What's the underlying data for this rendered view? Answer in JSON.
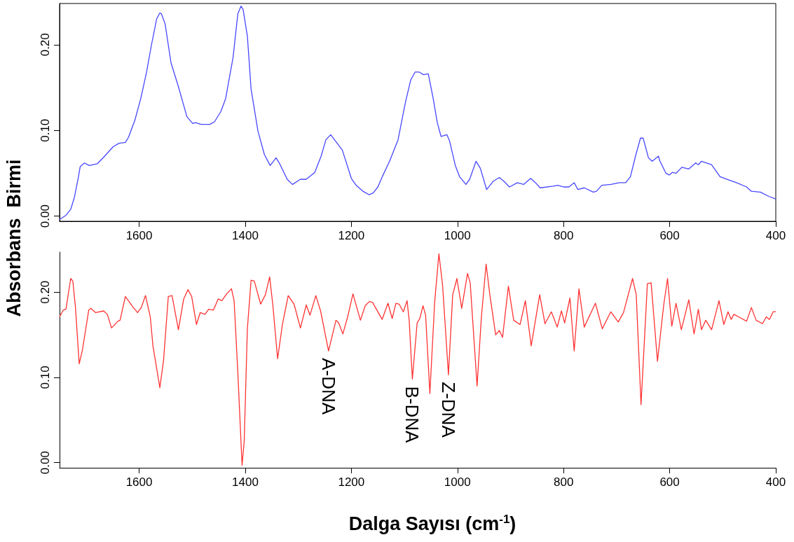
{
  "chart_data": [
    {
      "type": "line",
      "ylabel": "Absorbans  Birmi",
      "color": "#4747ff",
      "marker": "none",
      "xlim": [
        1750,
        400
      ],
      "xticks": [
        1600,
        1400,
        1200,
        1000,
        800,
        600,
        400
      ],
      "ylim": [
        -0.006,
        0.248
      ],
      "yticks": [
        {
          "value": 0,
          "label": "0.00"
        },
        {
          "value": 0.1,
          "label": "0.10"
        },
        {
          "value": 0.2,
          "label": "0.20"
        }
      ],
      "x": [
        1750,
        1738,
        1729,
        1722,
        1715,
        1711,
        1703,
        1694,
        1679,
        1665,
        1649,
        1638,
        1626,
        1620,
        1608,
        1597,
        1586,
        1577,
        1567,
        1561,
        1558,
        1551,
        1540,
        1526,
        1510,
        1499,
        1494,
        1483,
        1467,
        1458,
        1446,
        1437,
        1423,
        1414,
        1408,
        1404,
        1396,
        1389,
        1376,
        1364,
        1353,
        1342,
        1335,
        1321,
        1311,
        1296,
        1285,
        1269,
        1257,
        1248,
        1239,
        1228,
        1217,
        1200,
        1191,
        1178,
        1167,
        1159,
        1150,
        1141,
        1128,
        1112,
        1098,
        1088,
        1080,
        1072,
        1064,
        1055,
        1046,
        1038,
        1031,
        1020,
        1015,
        1004,
        996,
        984,
        977,
        965,
        957,
        945,
        932,
        921,
        913,
        902,
        887,
        875,
        862,
        853,
        844,
        820,
        811,
        799,
        790,
        780,
        773,
        761,
        744,
        738,
        728,
        711,
        695,
        683,
        674,
        664,
        655,
        650,
        640,
        633,
        621,
        619,
        607,
        601,
        595,
        588,
        577,
        564,
        551,
        546,
        540,
        521,
        505,
        488,
        474,
        455,
        446,
        429,
        413,
        400
      ],
      "values": [
        -0.004,
        0.001,
        0.008,
        0.022,
        0.044,
        0.058,
        0.062,
        0.059,
        0.061,
        0.07,
        0.081,
        0.085,
        0.086,
        0.092,
        0.112,
        0.137,
        0.168,
        0.199,
        0.23,
        0.237,
        0.236,
        0.224,
        0.179,
        0.151,
        0.116,
        0.108,
        0.109,
        0.107,
        0.107,
        0.11,
        0.122,
        0.137,
        0.185,
        0.236,
        0.245,
        0.241,
        0.21,
        0.148,
        0.099,
        0.072,
        0.059,
        0.068,
        0.061,
        0.043,
        0.037,
        0.043,
        0.043,
        0.051,
        0.07,
        0.089,
        0.095,
        0.086,
        0.077,
        0.044,
        0.036,
        0.029,
        0.025,
        0.027,
        0.034,
        0.047,
        0.064,
        0.089,
        0.133,
        0.159,
        0.168,
        0.168,
        0.165,
        0.166,
        0.138,
        0.109,
        0.093,
        0.095,
        0.088,
        0.059,
        0.046,
        0.037,
        0.043,
        0.064,
        0.056,
        0.031,
        0.041,
        0.045,
        0.041,
        0.034,
        0.039,
        0.037,
        0.044,
        0.039,
        0.033,
        0.035,
        0.036,
        0.034,
        0.034,
        0.039,
        0.031,
        0.033,
        0.028,
        0.029,
        0.036,
        0.037,
        0.039,
        0.039,
        0.046,
        0.071,
        0.091,
        0.091,
        0.068,
        0.064,
        0.07,
        0.065,
        0.05,
        0.048,
        0.051,
        0.05,
        0.057,
        0.055,
        0.062,
        0.06,
        0.064,
        0.06,
        0.046,
        0.042,
        0.039,
        0.034,
        0.029,
        0.028,
        0.023,
        0.02
      ]
    },
    {
      "type": "line",
      "xlabel": "Dalga Sayısı (cm$^{-1}$)",
      "color": "#ff3333",
      "marker": "none",
      "xlim": [
        1750,
        400
      ],
      "xticks": [
        1600,
        1400,
        1200,
        1000,
        800,
        600,
        400
      ],
      "ylim": [
        -0.006,
        0.247
      ],
      "yticks": [
        {
          "value": 0,
          "label": "0.00"
        },
        {
          "value": 0.1,
          "label": "0.10"
        },
        {
          "value": 0.2,
          "label": "0.20"
        }
      ],
      "annotations": [
        {
          "text": "A-DNA",
          "x": 1243,
          "y": 0.131
        },
        {
          "text": "B-DNA",
          "x": 1085,
          "y": 0.098
        },
        {
          "text": "Z-DNA",
          "x": 1017,
          "y": 0.103
        }
      ],
      "x": [
        1750,
        1743,
        1738,
        1729,
        1725,
        1720,
        1713,
        1707,
        1695,
        1691,
        1682,
        1667,
        1660,
        1652,
        1640,
        1636,
        1626,
        1611,
        1603,
        1596,
        1588,
        1579,
        1574,
        1561,
        1554,
        1545,
        1538,
        1526,
        1516,
        1508,
        1501,
        1492,
        1485,
        1476,
        1469,
        1460,
        1451,
        1444,
        1435,
        1426,
        1421,
        1414,
        1406,
        1402,
        1396,
        1389,
        1383,
        1371,
        1362,
        1354,
        1348,
        1339,
        1330,
        1319,
        1308,
        1296,
        1285,
        1278,
        1267,
        1258,
        1243,
        1229,
        1224,
        1216,
        1207,
        1197,
        1183,
        1174,
        1166,
        1160,
        1142,
        1131,
        1123,
        1116,
        1110,
        1102,
        1095,
        1091,
        1085,
        1076,
        1071,
        1065,
        1060,
        1052,
        1043,
        1035,
        1028,
        1017,
        1009,
        1001,
        992,
        981,
        976,
        963,
        955,
        946,
        939,
        928,
        921,
        915,
        904,
        894,
        882,
        872,
        861,
        845,
        835,
        823,
        812,
        804,
        798,
        788,
        780,
        771,
        761,
        740,
        727,
        711,
        697,
        687,
        670,
        663,
        654,
        642,
        635,
        623,
        611,
        604,
        596,
        588,
        578,
        564,
        554,
        546,
        540,
        532,
        521,
        507,
        498,
        490,
        484,
        479,
        467,
        455,
        446,
        437,
        425,
        418,
        412,
        405,
        400
      ],
      "values": [
        0.171,
        0.179,
        0.18,
        0.216,
        0.213,
        0.182,
        0.116,
        0.132,
        0.179,
        0.181,
        0.176,
        0.178,
        0.174,
        0.158,
        0.166,
        0.167,
        0.195,
        0.182,
        0.176,
        0.182,
        0.196,
        0.171,
        0.137,
        0.088,
        0.12,
        0.195,
        0.196,
        0.156,
        0.192,
        0.203,
        0.195,
        0.162,
        0.176,
        0.174,
        0.18,
        0.179,
        0.192,
        0.19,
        0.198,
        0.204,
        0.19,
        0.106,
        -0.003,
        0.025,
        0.157,
        0.214,
        0.213,
        0.186,
        0.197,
        0.218,
        0.185,
        0.122,
        0.162,
        0.196,
        0.186,
        0.158,
        0.185,
        0.173,
        0.196,
        0.178,
        0.131,
        0.167,
        0.164,
        0.151,
        0.171,
        0.198,
        0.167,
        0.184,
        0.189,
        0.188,
        0.168,
        0.187,
        0.169,
        0.187,
        0.186,
        0.177,
        0.19,
        0.167,
        0.098,
        0.164,
        0.169,
        0.184,
        0.173,
        0.081,
        0.188,
        0.245,
        0.208,
        0.103,
        0.197,
        0.216,
        0.181,
        0.222,
        0.211,
        0.09,
        0.17,
        0.233,
        0.197,
        0.15,
        0.155,
        0.147,
        0.207,
        0.167,
        0.162,
        0.19,
        0.137,
        0.197,
        0.163,
        0.177,
        0.159,
        0.178,
        0.164,
        0.193,
        0.131,
        0.204,
        0.159,
        0.187,
        0.157,
        0.177,
        0.165,
        0.176,
        0.216,
        0.197,
        0.068,
        0.21,
        0.211,
        0.119,
        0.186,
        0.216,
        0.16,
        0.187,
        0.156,
        0.191,
        0.151,
        0.18,
        0.156,
        0.167,
        0.156,
        0.19,
        0.162,
        0.177,
        0.168,
        0.174,
        0.17,
        0.166,
        0.182,
        0.167,
        0.163,
        0.171,
        0.168,
        0.177,
        0.177
      ]
    }
  ]
}
